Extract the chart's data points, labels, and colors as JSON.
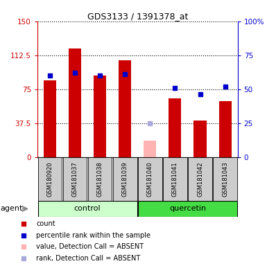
{
  "title": "GDS3133 / 1391378_at",
  "samples": [
    "GSM180920",
    "GSM181037",
    "GSM181038",
    "GSM181039",
    "GSM181040",
    "GSM181041",
    "GSM181042",
    "GSM181043"
  ],
  "count_values": [
    85,
    120,
    90,
    107,
    null,
    65,
    40,
    62
  ],
  "count_absent_values": [
    null,
    null,
    null,
    null,
    18,
    null,
    null,
    null
  ],
  "rank_values": [
    60,
    62,
    60,
    61,
    null,
    51,
    46,
    52
  ],
  "rank_absent_values": [
    null,
    null,
    null,
    null,
    25,
    null,
    null,
    null
  ],
  "left_ylim": [
    0,
    150
  ],
  "left_yticks": [
    0,
    37.5,
    75,
    112.5,
    150
  ],
  "right_ylim": [
    0,
    100
  ],
  "right_yticks": [
    0,
    25,
    50,
    75,
    100
  ],
  "count_color": "#cc0000",
  "count_absent_color": "#ffb3b3",
  "rank_color": "#0000cc",
  "rank_absent_color": "#aaaadd",
  "control_bg": "#ccffcc",
  "quercetin_bg": "#44dd44",
  "sample_bg_color": "#cccccc",
  "bar_width": 0.5,
  "control_label": "control",
  "quercetin_label": "quercetin",
  "agent_label": "agent"
}
